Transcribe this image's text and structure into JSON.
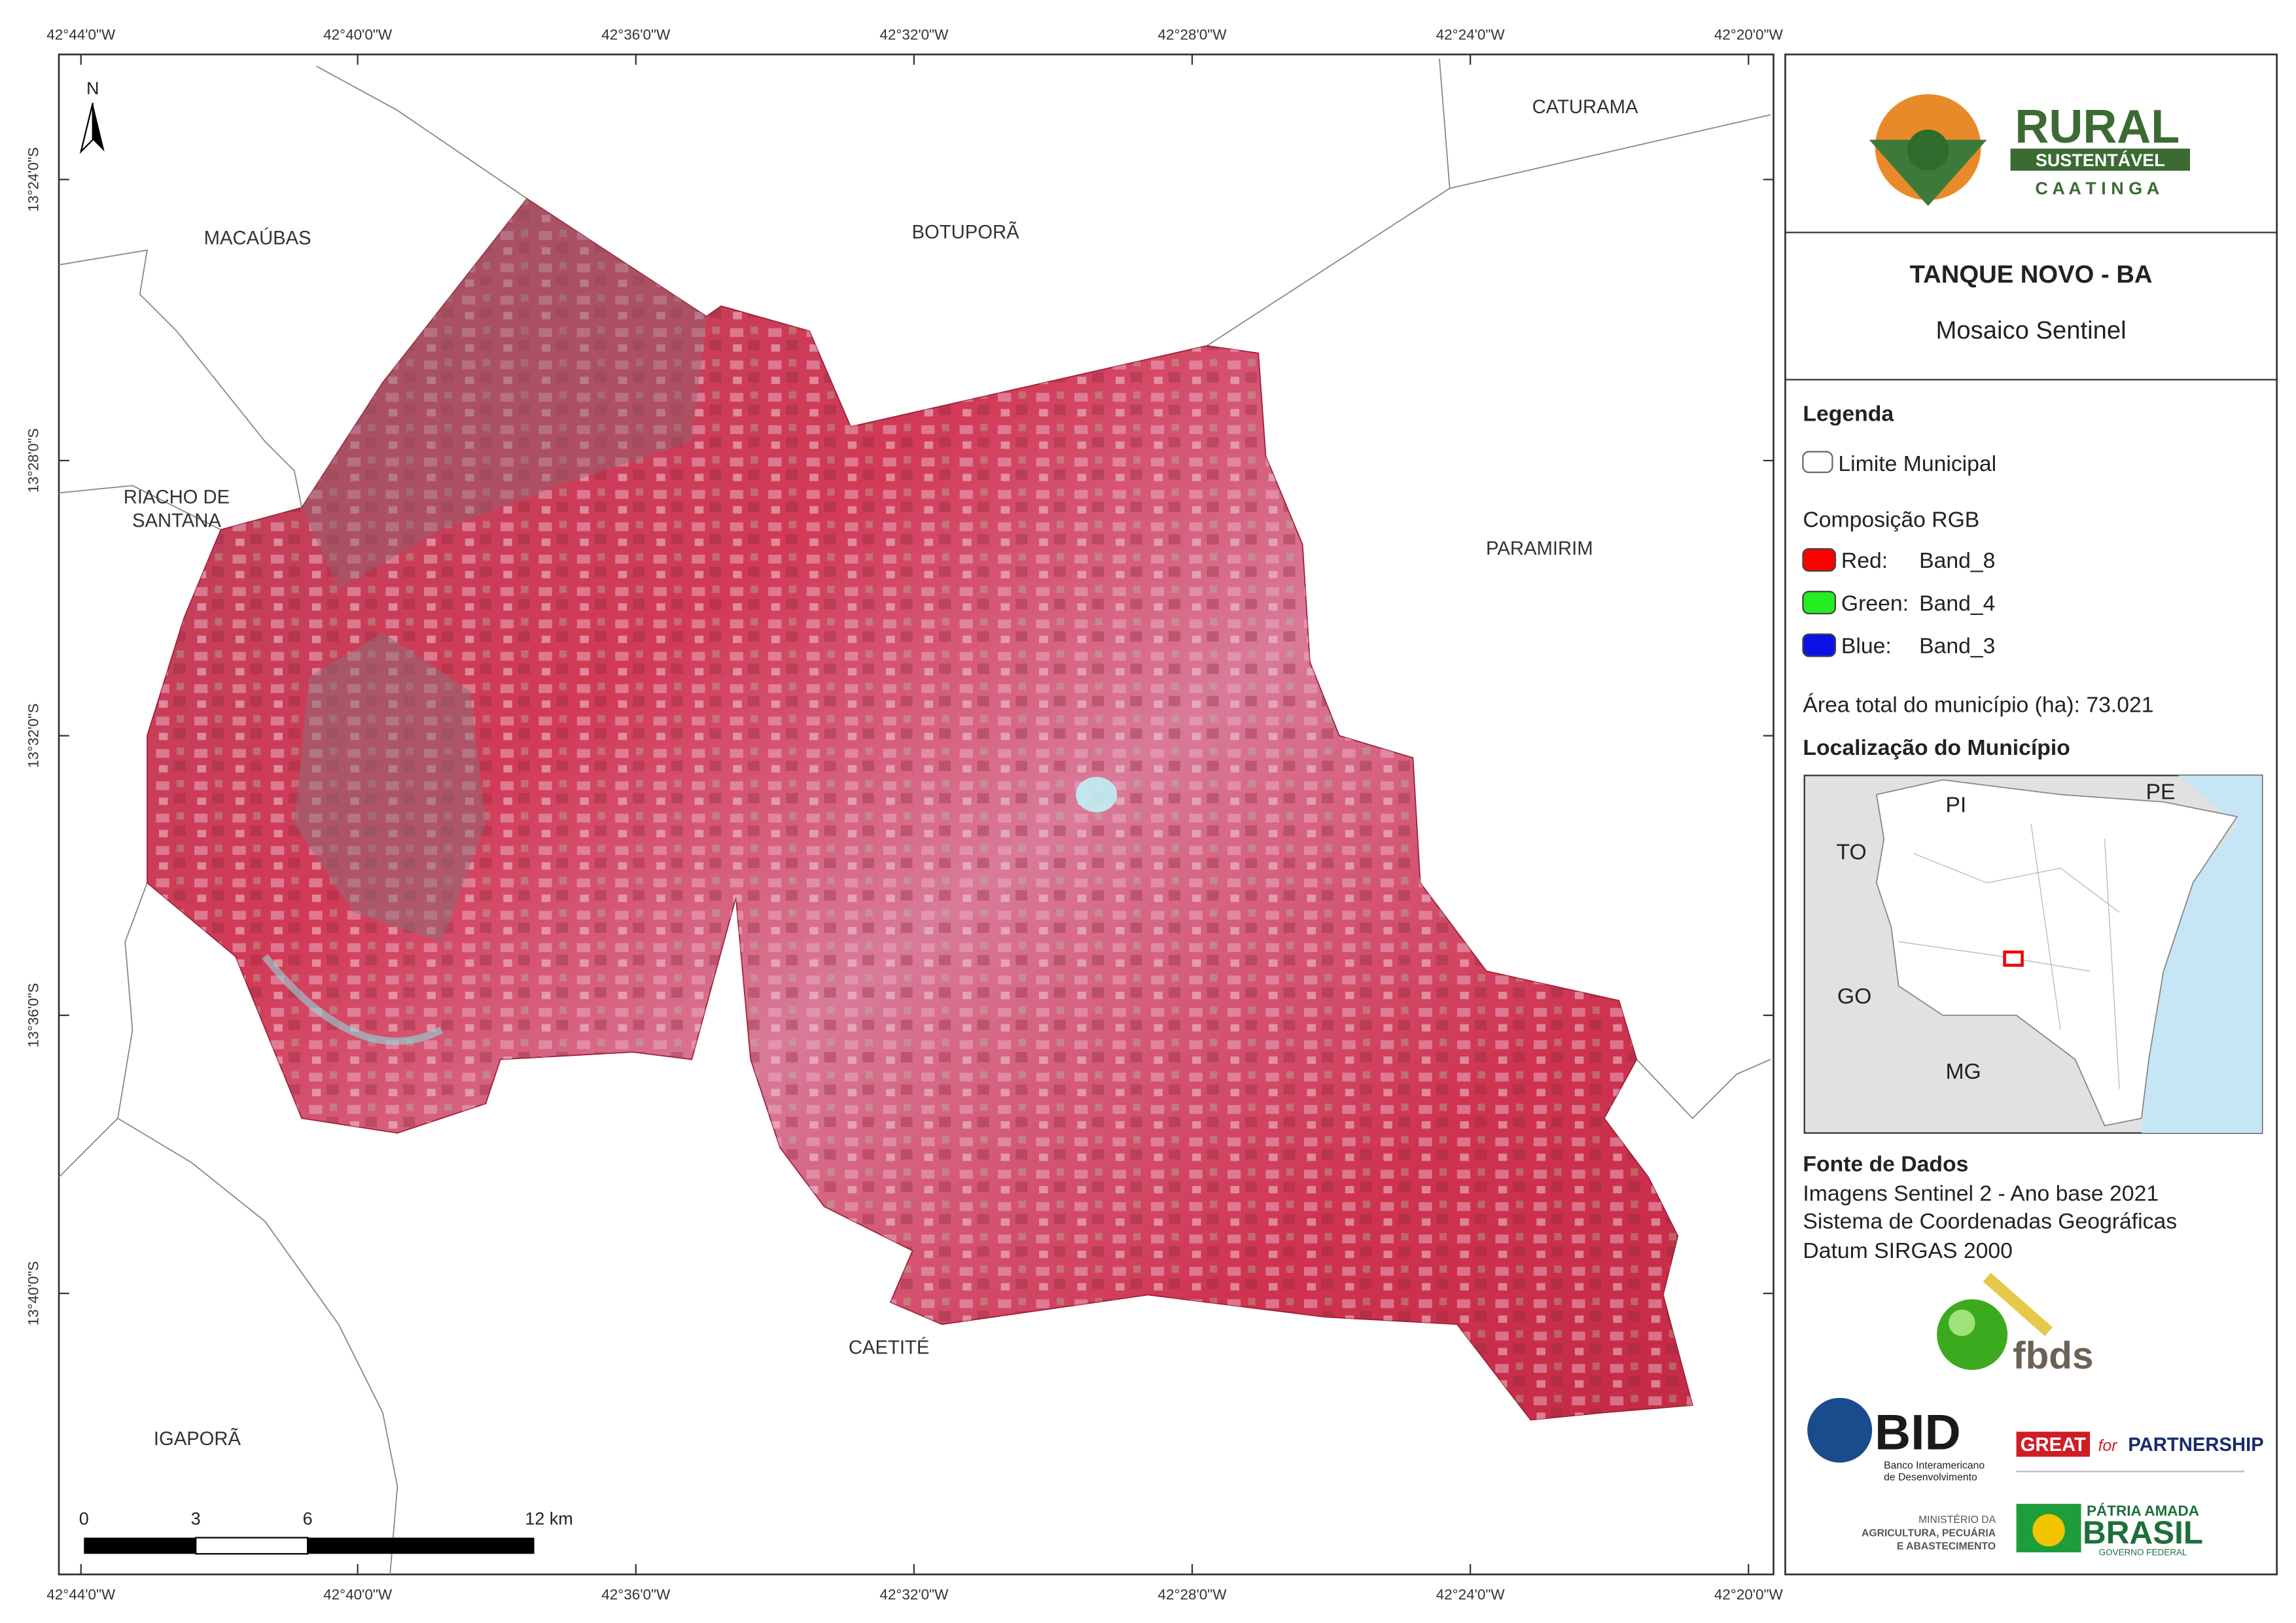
{
  "map": {
    "top_coords": [
      "42°44'0\"W",
      "42°40'0\"W",
      "42°36'0\"W",
      "42°32'0\"W",
      "42°28'0\"W",
      "42°24'0\"W",
      "42°20'0\"W"
    ],
    "bottom_coords": [
      "42°44'0\"W",
      "42°40'0\"W",
      "42°36'0\"W",
      "42°32'0\"W",
      "42°28'0\"W",
      "42°24'0\"W",
      "42°20'0\"W"
    ],
    "left_coords": [
      "13°24'0\"S",
      "13°28'0\"S",
      "13°32'0\"S",
      "13°36'0\"S",
      "13°40'0\"S"
    ],
    "places": {
      "macaubas": "MACAÚBAS",
      "botupora": "BOTUPORÃ",
      "caturama": "CATURAMA",
      "riacho": [
        "RIACHO DE",
        "SANTANA"
      ],
      "paramirim": "PARAMIRIM",
      "caetite": "CAETITÉ",
      "igapora": "IGAPORÃ"
    },
    "north": "N",
    "scale_labels": [
      "0",
      "3",
      "6",
      "12 km"
    ]
  },
  "panel": {
    "logo": {
      "rural": "RURAL",
      "sustentavel": "SUSTENTÁVEL",
      "caatinga": "C A A T I N G A"
    },
    "title": "TANQUE NOVO - BA",
    "subtitle": "Mosaico Sentinel",
    "legend": {
      "heading": "Legenda",
      "limit": "Limite Municipal",
      "rgb": "Composição RGB",
      "bands": [
        {
          "channel": "Red:",
          "band": "Band_8",
          "color": "#ff0000"
        },
        {
          "channel": "Green:",
          "band": "Band_4",
          "color": "#22ee22"
        },
        {
          "channel": "Blue:",
          "band": "Band_3",
          "color": "#0a12e6"
        }
      ],
      "area": "Área total do município (ha): 73.021"
    },
    "location": {
      "heading": "Localização do Município",
      "states": {
        "pi": "PI",
        "pe": "PE",
        "to": "TO",
        "go": "GO",
        "mg": "MG"
      }
    },
    "sources": {
      "heading": "Fonte de Dados",
      "lines": [
        "Imagens Sentinel 2 - Ano base 2021",
        "Sistema de Coordenadas Geográficas",
        "Datum SIRGAS 2000"
      ]
    },
    "logos": {
      "fbds": "fbds",
      "bid": "BID",
      "bid_sub": [
        "Banco Interamericano",
        "de Desenvolvimento"
      ],
      "great": "GREAT",
      "for": "for",
      "partnership": "PARTNERSHIP",
      "ministry": [
        "MINISTÉRIO DA",
        "AGRICULTURA, PECUÁRIA",
        "E ABASTECIMENTO"
      ],
      "patria": "PÁTRIA AMADA",
      "brasil": "BRASIL",
      "governo": "GOVERNO FEDERAL"
    }
  }
}
